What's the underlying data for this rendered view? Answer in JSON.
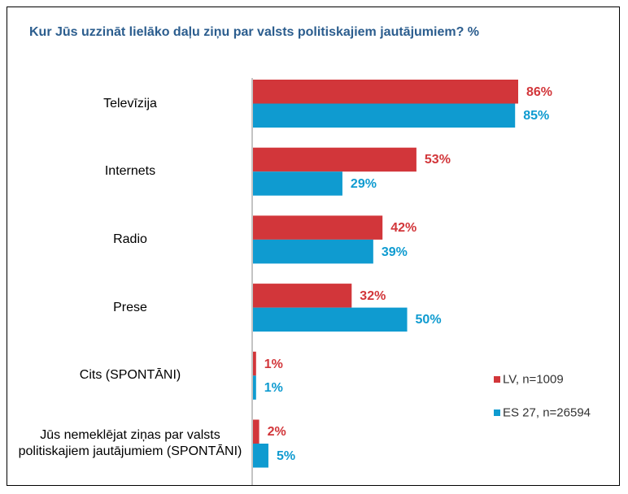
{
  "chart_data": {
    "type": "barh",
    "title": "Kur Jūs uzzināt lielāko daļu ziņu par valsts politiskajiem jautājumiem? %",
    "categories": [
      "Televīzija",
      "Internets",
      "Radio",
      "Prese",
      "Cits (SPONTĀNI)",
      "Jūs nemeklējat ziņas par valsts politiskajiem jautājumiem (SPONTĀNI)"
    ],
    "series": [
      {
        "name": "LV, n=1009",
        "color": "#d2363a",
        "values": [
          86,
          53,
          42,
          32,
          1,
          2
        ],
        "value_labels": [
          "86%",
          "53%",
          "42%",
          "32%",
          "1%",
          "2%"
        ]
      },
      {
        "name": "ES 27, n=26594",
        "color": "#0f9bd0",
        "values": [
          85,
          29,
          39,
          50,
          1,
          5
        ],
        "value_labels": [
          "85%",
          "29%",
          "39%",
          "50%",
          "1%",
          "5%"
        ]
      }
    ],
    "legend": "right"
  }
}
